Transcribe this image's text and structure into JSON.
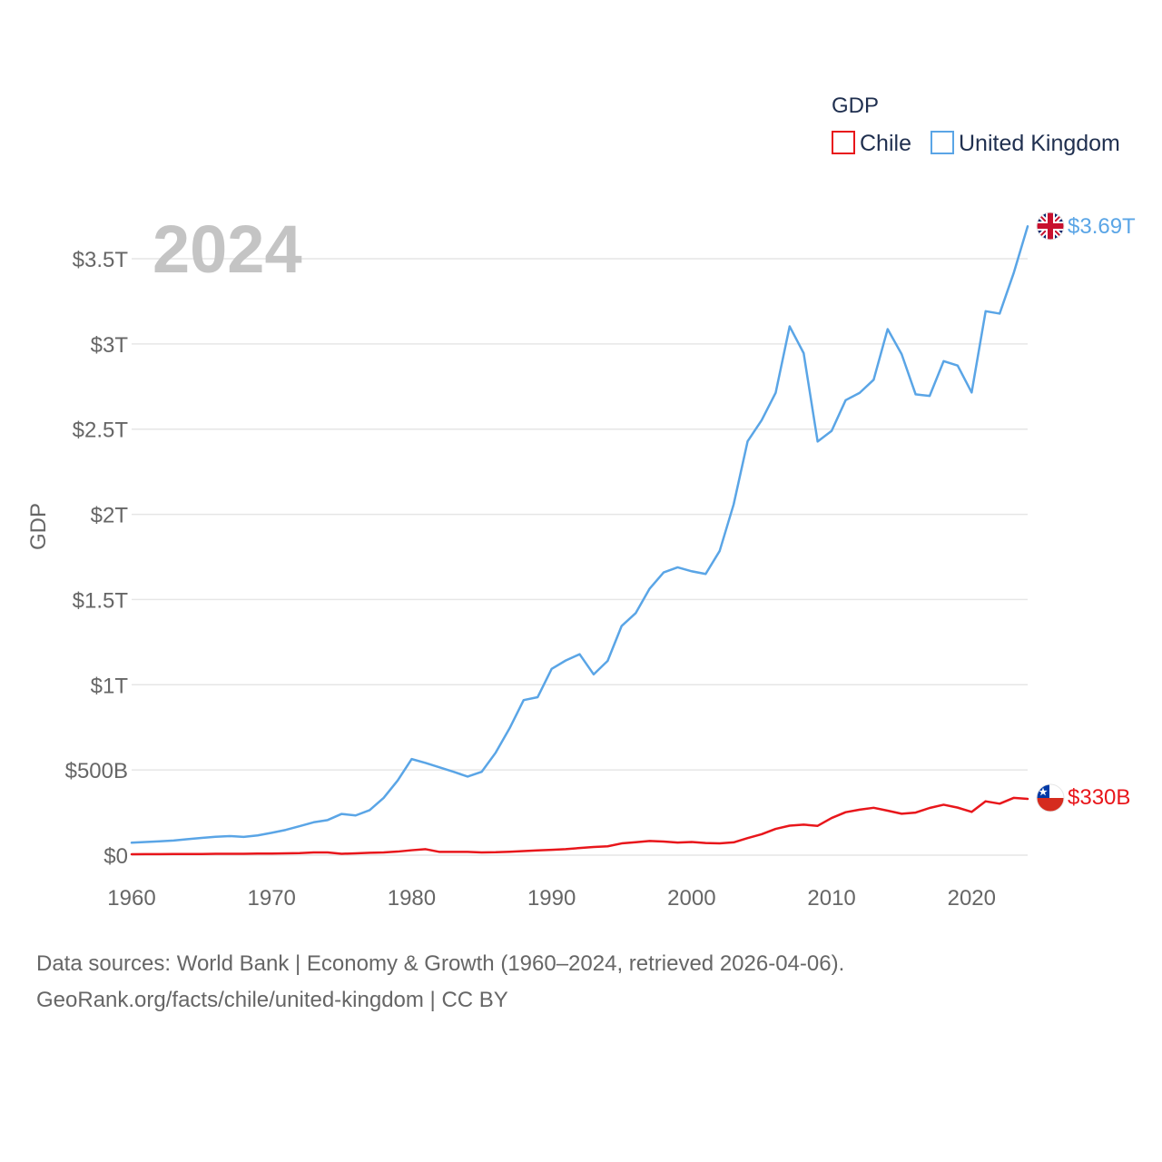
{
  "chart_data": {
    "type": "line",
    "title": "",
    "year_label": "2024",
    "xlabel": "",
    "ylabel": "GDP",
    "xlim": [
      1960,
      2024
    ],
    "ylim": [
      0,
      3.8
    ],
    "x_ticks": [
      1960,
      1970,
      1980,
      1990,
      2000,
      2010,
      2020
    ],
    "y_ticks": [
      {
        "value": 0,
        "label": "$0"
      },
      {
        "value": 0.5,
        "label": "$500B"
      },
      {
        "value": 1,
        "label": "$1T"
      },
      {
        "value": 1.5,
        "label": "$1.5T"
      },
      {
        "value": 2,
        "label": "$2T"
      },
      {
        "value": 2.5,
        "label": "$2.5T"
      },
      {
        "value": 3,
        "label": "$3T"
      },
      {
        "value": 3.5,
        "label": "$3.5T"
      }
    ],
    "legend_title": "GDP",
    "legend_position": "top-right",
    "units": "trillions USD",
    "series": [
      {
        "name": "Chile",
        "color": "#e8161b",
        "end_label": "$330B",
        "flag": "chile-flag",
        "values": [
          0.005,
          0.006,
          0.006,
          0.007,
          0.007,
          0.007,
          0.008,
          0.008,
          0.008,
          0.009,
          0.009,
          0.011,
          0.012,
          0.016,
          0.016,
          0.008,
          0.011,
          0.014,
          0.016,
          0.021,
          0.029,
          0.035,
          0.019,
          0.019,
          0.019,
          0.016,
          0.017,
          0.02,
          0.024,
          0.028,
          0.031,
          0.035,
          0.042,
          0.048,
          0.052,
          0.069,
          0.076,
          0.083,
          0.08,
          0.074,
          0.077,
          0.071,
          0.069,
          0.075,
          0.1,
          0.123,
          0.154,
          0.173,
          0.179,
          0.172,
          0.218,
          0.252,
          0.267,
          0.278,
          0.261,
          0.243,
          0.25,
          0.277,
          0.296,
          0.279,
          0.254,
          0.316,
          0.302,
          0.336,
          0.33
        ]
      },
      {
        "name": "United Kingdom",
        "color": "#5aa5e6",
        "end_label": "$3.69T",
        "flag": "uk-flag",
        "values": [
          0.073,
          0.077,
          0.081,
          0.086,
          0.094,
          0.101,
          0.108,
          0.112,
          0.107,
          0.116,
          0.131,
          0.148,
          0.17,
          0.193,
          0.206,
          0.242,
          0.233,
          0.264,
          0.336,
          0.438,
          0.564,
          0.541,
          0.515,
          0.489,
          0.461,
          0.489,
          0.601,
          0.745,
          0.91,
          0.927,
          1.093,
          1.142,
          1.179,
          1.061,
          1.14,
          1.345,
          1.42,
          1.564,
          1.659,
          1.689,
          1.666,
          1.65,
          1.785,
          2.058,
          2.429,
          2.552,
          2.713,
          3.103,
          2.946,
          2.427,
          2.49,
          2.67,
          2.713,
          2.79,
          3.087,
          2.94,
          2.704,
          2.695,
          2.899,
          2.873,
          2.715,
          3.192,
          3.178,
          3.415,
          3.69
        ]
      }
    ]
  },
  "footer": {
    "line1": "Data sources: World Bank | Economy & Growth (1960–2024, retrieved 2026-04-06).",
    "line2": "GeoRank.org/facts/chile/united-kingdom | CC BY"
  }
}
